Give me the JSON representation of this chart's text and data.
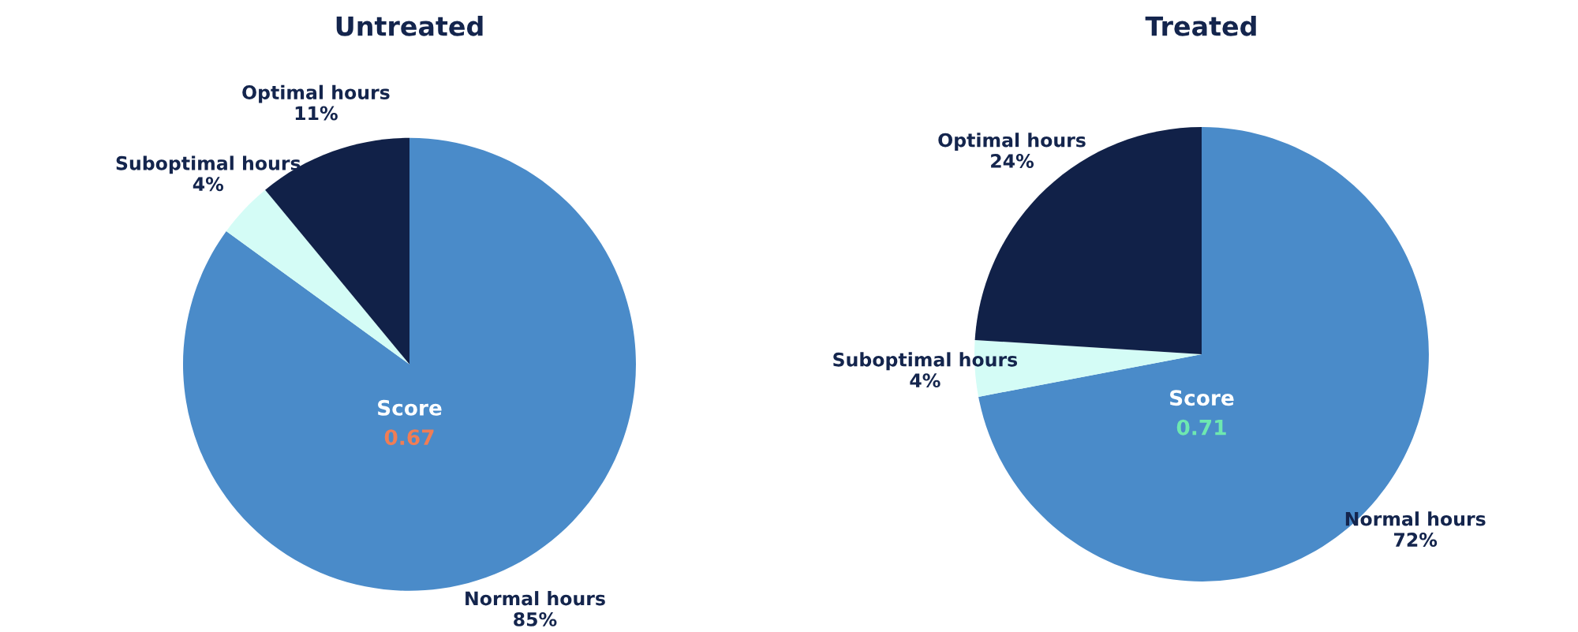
{
  "chart_data": [
    {
      "type": "pie",
      "title": "Untreated",
      "categories": [
        "Normal hours",
        "Suboptimal hours",
        "Optimal hours"
      ],
      "values": [
        85,
        4,
        11
      ],
      "colors": [
        "#4a8bc9",
        "#d4fcf6",
        "#112148"
      ],
      "value_labels": [
        "85%",
        "4%",
        "11%"
      ],
      "annotations": [
        "Score",
        "0.67"
      ],
      "legend": false
    },
    {
      "type": "pie",
      "title": "Treated",
      "categories": [
        "Normal hours",
        "Suboptimal hours",
        "Optimal hours"
      ],
      "values": [
        72,
        4,
        24
      ],
      "colors": [
        "#4a8bc9",
        "#d4fcf6",
        "#112148"
      ],
      "value_labels": [
        "72%",
        "4%",
        "24%"
      ],
      "annotations": [
        "Score",
        "0.71"
      ],
      "legend": false
    }
  ]
}
